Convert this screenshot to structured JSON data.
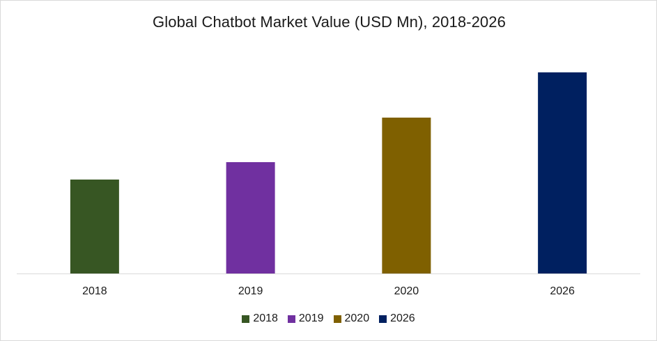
{
  "chart_data": {
    "type": "bar",
    "title": "Global Chatbot Market Value (USD Mn), 2018-2026",
    "categories": [
      "2018",
      "2019",
      "2020",
      "2026"
    ],
    "values": [
      135,
      160,
      224,
      289
    ],
    "colors": [
      "#375623",
      "#7030a0",
      "#7f6000",
      "#002060"
    ],
    "xlabel": "",
    "ylabel": "",
    "ylim": [
      0,
      320
    ],
    "grid": false,
    "legend": {
      "position": "bottom",
      "entries": [
        "2018",
        "2019",
        "2020",
        "2026"
      ]
    }
  }
}
